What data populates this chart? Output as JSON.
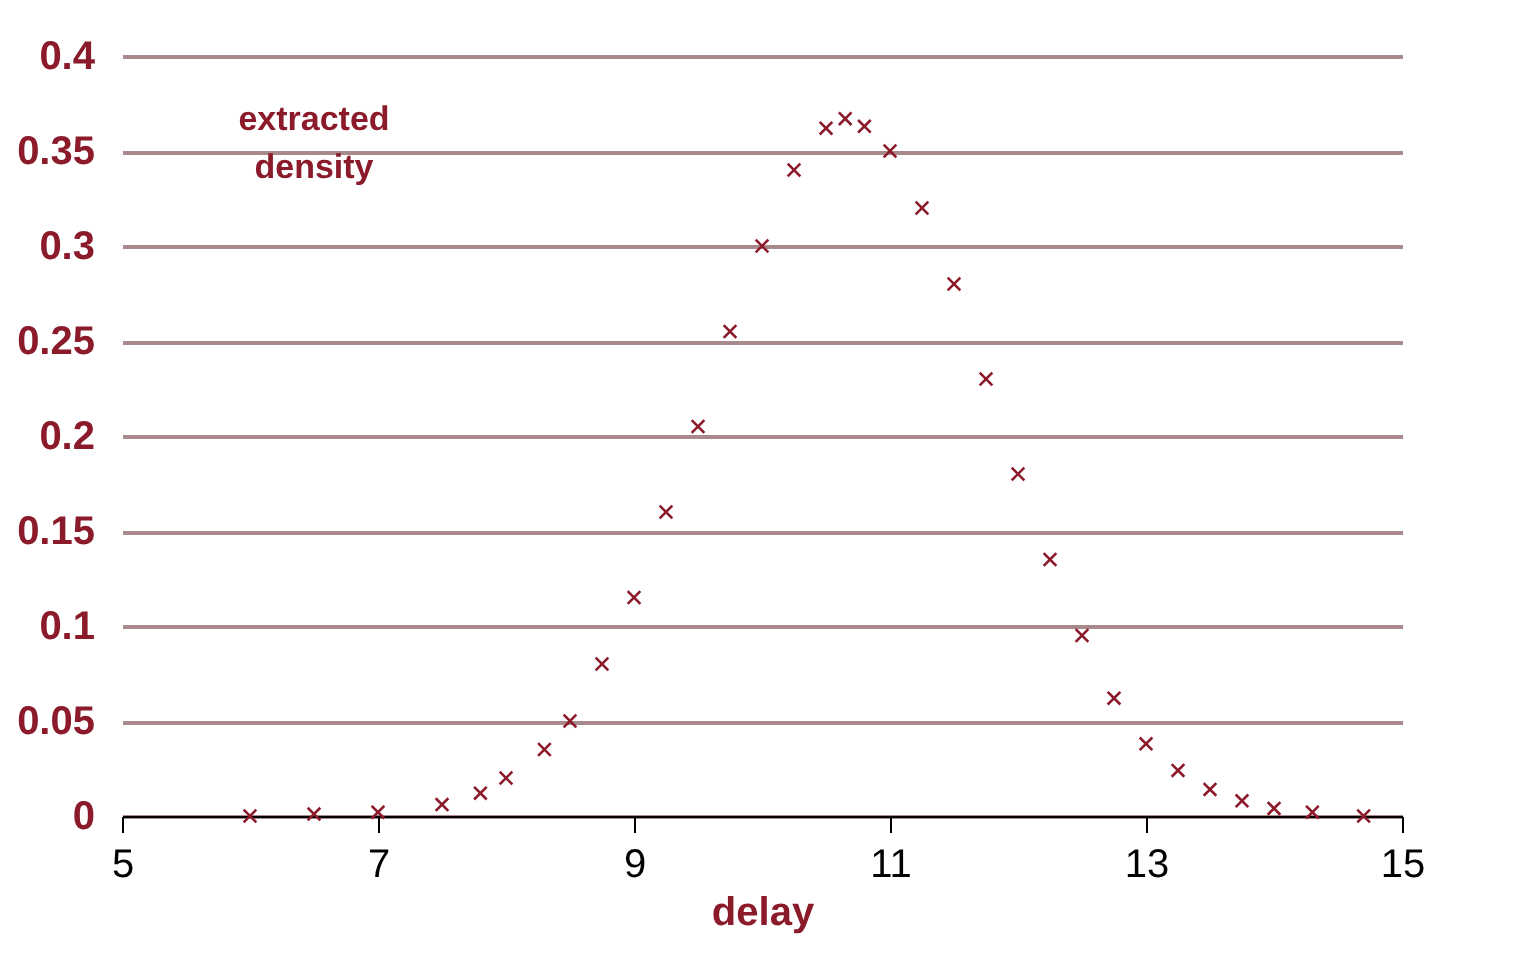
{
  "chart_data": {
    "type": "scatter",
    "xlabel": "delay",
    "annotations": [
      "extracted density"
    ],
    "x": [
      6.0,
      6.5,
      7.0,
      7.5,
      7.8,
      8.0,
      8.3,
      8.5,
      8.75,
      9.0,
      9.25,
      9.5,
      9.75,
      10.0,
      10.25,
      10.5,
      10.65,
      10.8,
      11.0,
      11.25,
      11.5,
      11.75,
      12.0,
      12.25,
      12.5,
      12.75,
      13.0,
      13.25,
      13.5,
      13.75,
      14.0,
      14.3,
      14.7
    ],
    "series": [
      {
        "color": "#8b1a2a",
        "values": [
          0.0,
          0.001,
          0.002,
          0.006,
          0.012,
          0.02,
          0.035,
          0.05,
          0.08,
          0.115,
          0.16,
          0.205,
          0.255,
          0.3,
          0.34,
          0.362,
          0.367,
          0.363,
          0.35,
          0.32,
          0.28,
          0.23,
          0.18,
          0.135,
          0.095,
          0.062,
          0.038,
          0.024,
          0.014,
          0.008,
          0.004,
          0.002,
          0.0
        ]
      }
    ],
    "xlim": [
      5,
      15
    ],
    "xticks": [
      5,
      7,
      9,
      11,
      13,
      15
    ],
    "ylim": [
      0,
      0.4
    ],
    "yticks": [
      0,
      0.05,
      0.1,
      0.15,
      0.2,
      0.25,
      0.3,
      0.35,
      0.4
    ],
    "grid": "y",
    "marker": "cross"
  }
}
